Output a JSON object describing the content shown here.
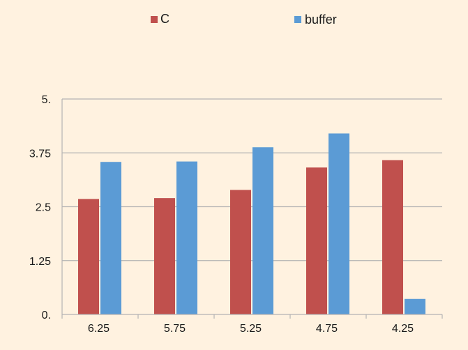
{
  "chart_data": {
    "type": "bar",
    "categories": [
      "6.25",
      "5.75",
      "5.25",
      "4.75",
      "4.25"
    ],
    "series": [
      {
        "name": "C",
        "color": "#c0504d",
        "values": [
          2.68,
          2.7,
          2.89,
          3.41,
          3.58
        ]
      },
      {
        "name": "buffer",
        "color": "#5b9bd5",
        "values": [
          3.54,
          3.55,
          3.88,
          4.2,
          0.36
        ]
      }
    ],
    "y_ticks": [
      "0.",
      "1.25",
      "2.5",
      "3.75",
      "5."
    ],
    "ylim": [
      0,
      5
    ],
    "grid": true,
    "legend_position": "top",
    "title": "",
    "xlabel": "",
    "ylabel": ""
  }
}
